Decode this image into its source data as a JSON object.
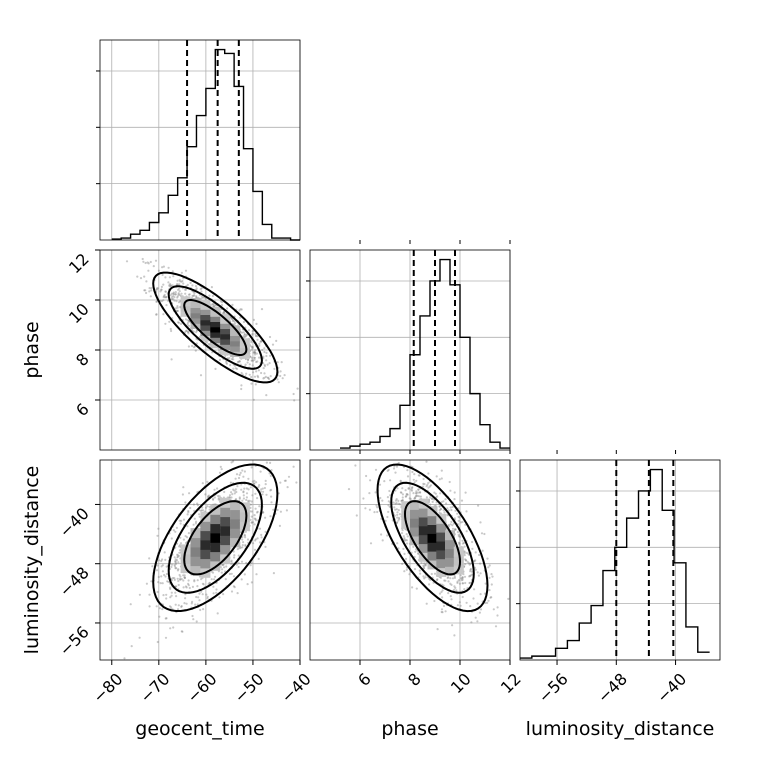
{
  "chart_data": {
    "type": "corner",
    "parameters": [
      "geocent_time",
      "phase",
      "luminosity_distance"
    ],
    "ranges": {
      "geocent_time": [
        -82.5,
        -40
      ],
      "phase": [
        4,
        12
      ],
      "luminosity_distance": [
        -61,
        -34
      ]
    },
    "ticks": {
      "geocent_time": [
        -80,
        -70,
        -60,
        -50,
        -40
      ],
      "phase": [
        6,
        8,
        10,
        12
      ],
      "luminosity_distance": [
        -56,
        -48,
        -40
      ]
    },
    "tick_labels": {
      "geocent_time": [
        "−80",
        "−70",
        "−60",
        "−50",
        "−40"
      ],
      "phase": [
        "6",
        "8",
        "10",
        "12"
      ],
      "luminosity_distance": [
        "−56",
        "−48",
        "−40"
      ]
    },
    "ylabels": {
      "phase": "phase",
      "luminosity_distance": "luminosity_distance"
    },
    "quantiles": {
      "geocent_time": [
        -64,
        -57.5,
        -53
      ],
      "phase": [
        8.15,
        9.0,
        9.8
      ],
      "luminosity_distance": [
        -48,
        -43.6,
        -40.3
      ]
    },
    "histograms": {
      "geocent_time": {
        "edges": [
          -80,
          -78,
          -76,
          -74,
          -72,
          -70,
          -68,
          -66,
          -64,
          -62,
          -60,
          -58,
          -56,
          -54,
          -52,
          -50,
          -48,
          -46,
          -44,
          -42,
          -40
        ],
        "counts": [
          0.005,
          0.01,
          0.03,
          0.05,
          0.09,
          0.14,
          0.23,
          0.32,
          0.48,
          0.64,
          0.78,
          0.98,
          0.96,
          0.79,
          0.47,
          0.25,
          0.08,
          0.01,
          0.01,
          0.0
        ]
      },
      "phase": {
        "edges": [
          5.2,
          5.6,
          6.0,
          6.4,
          6.8,
          7.2,
          7.6,
          8.0,
          8.4,
          8.8,
          9.2,
          9.6,
          10.0,
          10.4,
          10.8,
          11.2,
          11.6,
          12.0
        ],
        "counts": [
          0.01,
          0.02,
          0.03,
          0.04,
          0.07,
          0.11,
          0.23,
          0.49,
          0.69,
          0.87,
          0.98,
          0.85,
          0.58,
          0.29,
          0.13,
          0.04,
          0.01
        ]
      },
      "luminosity_distance": {
        "edges": [
          -61,
          -59.4,
          -57.8,
          -56.2,
          -54.6,
          -53.0,
          -51.4,
          -49.8,
          -48.2,
          -46.6,
          -45.0,
          -43.4,
          -41.8,
          -40.2,
          -38.6,
          -37.0,
          -35.4
        ],
        "counts": [
          0.01,
          0.02,
          0.02,
          0.06,
          0.1,
          0.19,
          0.28,
          0.46,
          0.58,
          0.73,
          0.87,
          0.98,
          0.77,
          0.5,
          0.17,
          0.04
        ]
      }
    },
    "pairs": [
      {
        "x": "geocent_time",
        "y": "phase",
        "mean": [
          -58,
          8.9
        ],
        "std": [
          6,
          1.0
        ],
        "corr": -0.8
      },
      {
        "x": "geocent_time",
        "y": "luminosity_distance",
        "mean": [
          -58,
          -44.5
        ],
        "std": [
          6,
          4.5
        ],
        "corr": 0.6
      },
      {
        "x": "phase",
        "y": "luminosity_distance",
        "mean": [
          8.9,
          -44.5
        ],
        "std": [
          1.0,
          4.5
        ],
        "corr": -0.65
      }
    ]
  }
}
